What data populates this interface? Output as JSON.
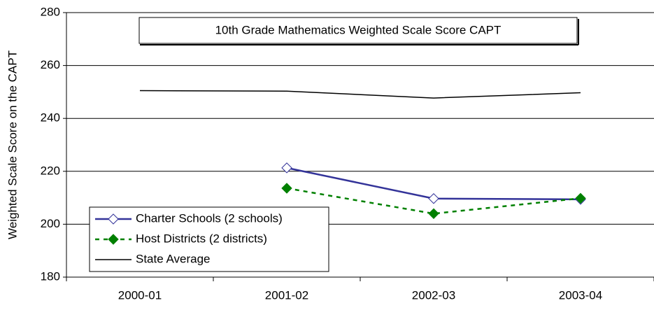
{
  "chart_data": {
    "type": "line",
    "title": "10th Grade Mathematics Weighted Scale Score CAPT",
    "y_label": "Weighted Scale Score on the CAPT",
    "categories": [
      "2000-01",
      "2001-02",
      "2002-03",
      "2003-04"
    ],
    "series": [
      {
        "name": "Charter Schools (2 schools)",
        "color": "#333399",
        "marker": "open-diamond",
        "dash": false,
        "values": [
          null,
          221.3,
          209.7,
          209.4
        ]
      },
      {
        "name": "Host Districts (2 districts)",
        "color": "#008000",
        "marker": "filled-diamond",
        "dash": true,
        "values": [
          null,
          213.6,
          204.0,
          209.8
        ]
      },
      {
        "name": "State Average",
        "color": "#000000",
        "marker": "none",
        "dash": false,
        "values": [
          250.5,
          250.3,
          247.7,
          249.7
        ]
      }
    ],
    "ylim": [
      180,
      280
    ],
    "yticks": [
      180,
      200,
      220,
      240,
      260,
      280
    ],
    "grid": true
  }
}
